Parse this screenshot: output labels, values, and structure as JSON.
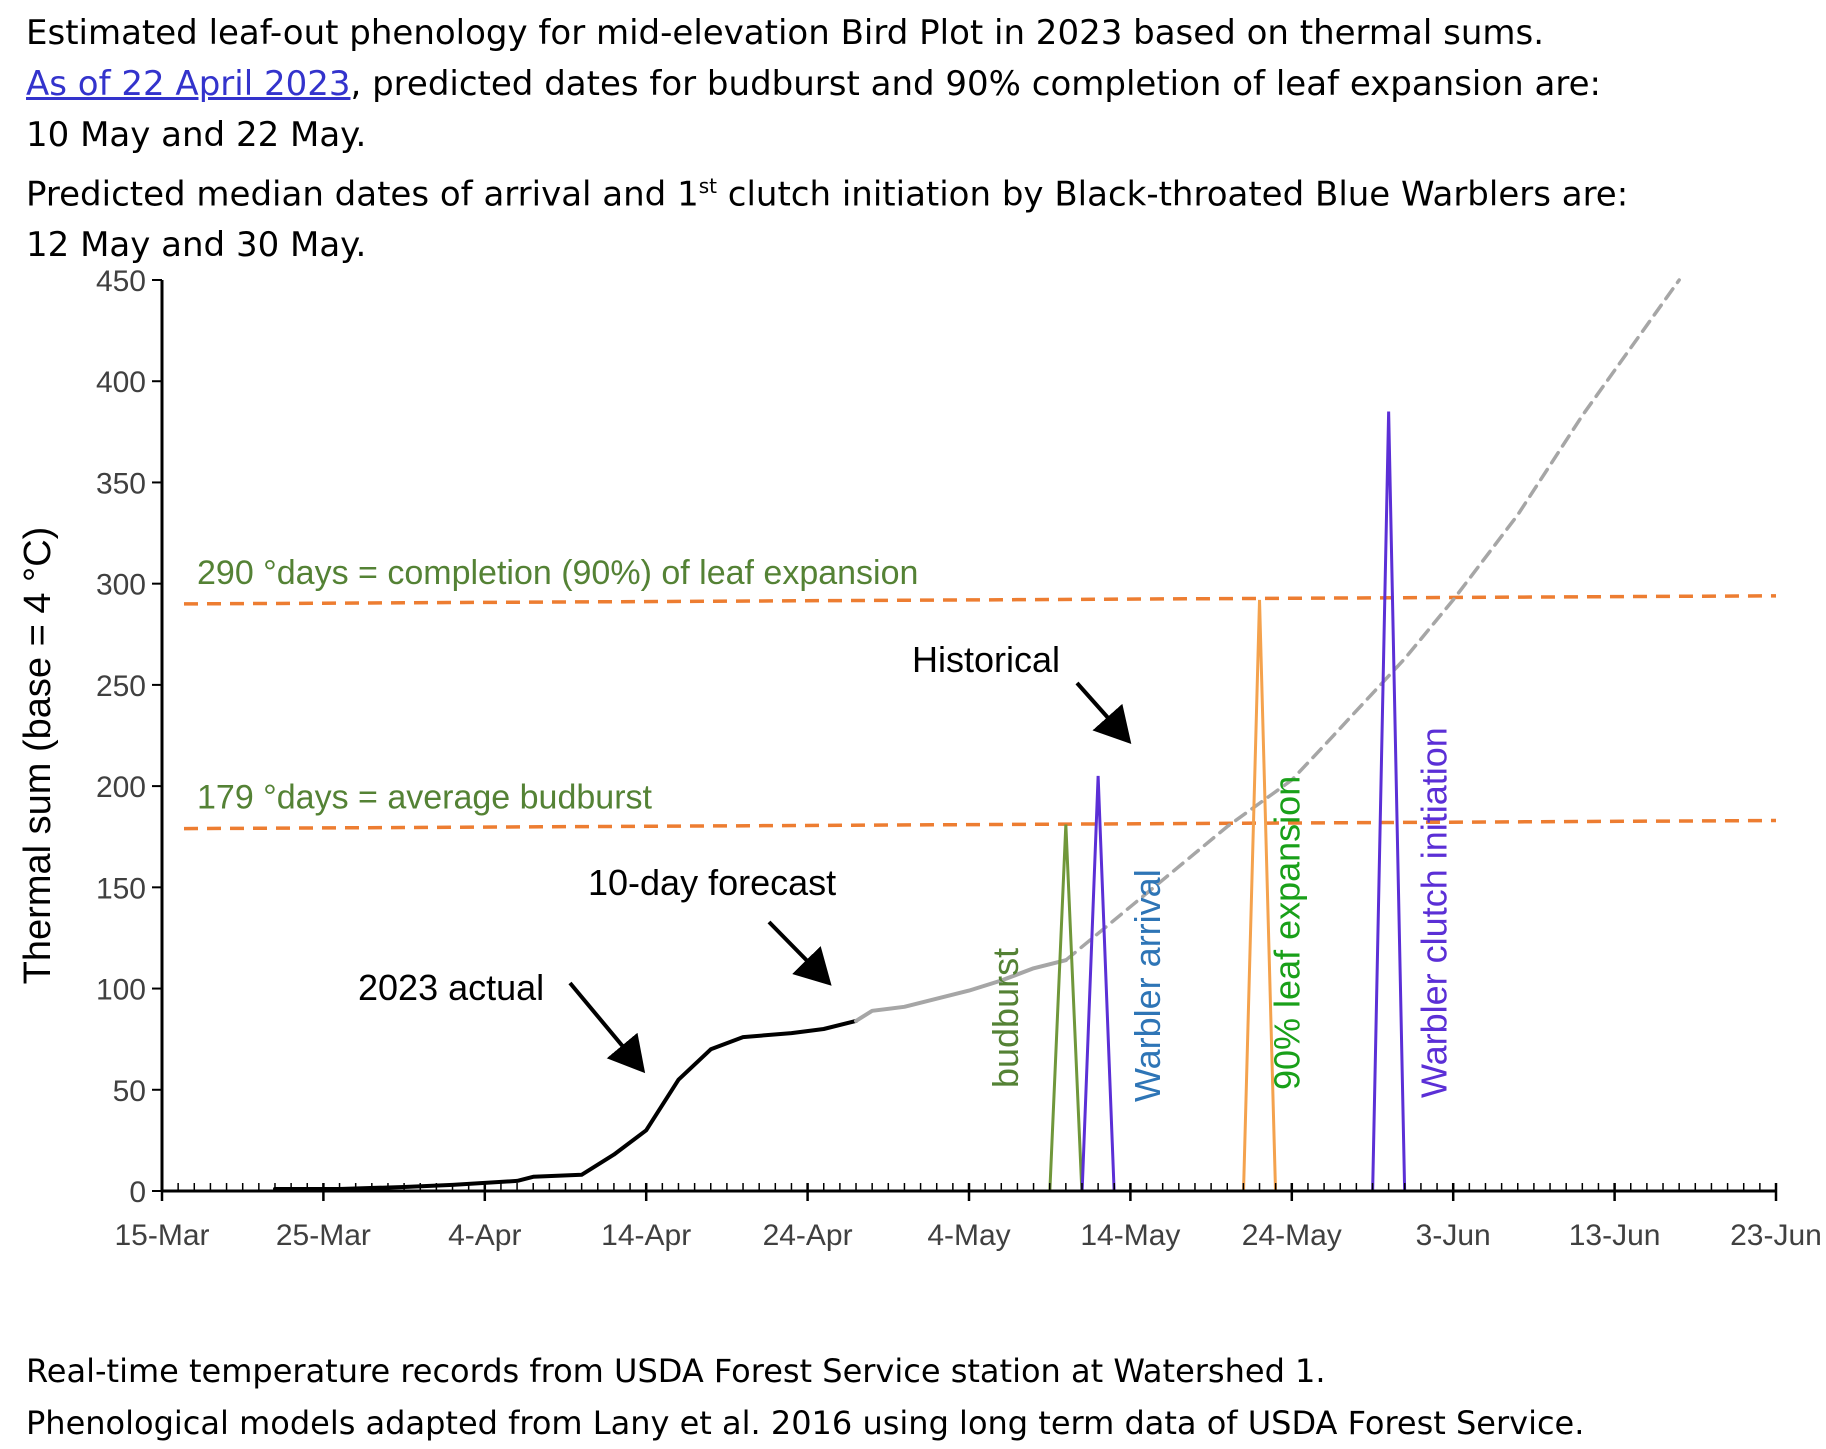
{
  "header": {
    "line1": "Estimated leaf-out phenology for mid-elevation Bird Plot in 2023 based on thermal sums.",
    "line2_link": "As of 22 April 2023",
    "line2_rest": ", predicted dates for budburst and 90% completion of leaf expansion are:",
    "line3": "10 May and 22 May.",
    "line4_pre": "Predicted median dates of arrival and 1",
    "line4_sup": "st",
    "line4_post": " clutch initiation by Black-throated Blue Warblers are:",
    "line5": "12 May and 30 May."
  },
  "footer": {
    "line1": "Real-time temperature records from USDA Forest Service station at Watershed 1.",
    "line2": "Phenological models adapted from Lany et al. 2016 using long term data of USDA Forest Service."
  },
  "colors": {
    "actual": "#000000",
    "forecast": "#a6a6a6",
    "historical": "#a6a6a6",
    "threshold": "#ed7d31",
    "threshold_label": "#548235",
    "budburst": "#70973a",
    "warbler_arrival": "#5b2fd6",
    "leaf_expansion": "#f4a24d",
    "clutch": "#5b2fd6",
    "label_budburst": "#548235",
    "label_arrival": "#2e75b6",
    "label_leaf": "#19a019",
    "label_clutch": "#5b2fd6"
  },
  "chart_data": {
    "type": "line",
    "title": "",
    "xlabel": "",
    "ylabel": "Thermal sum (base = 4 °C)",
    "x_ticks": [
      "15-Mar",
      "25-Mar",
      "4-Apr",
      "14-Apr",
      "24-Apr",
      "4-May",
      "14-May",
      "24-May",
      "3-Jun",
      "13-Jun",
      "23-Jun"
    ],
    "x_range": [
      "15-Mar",
      "23-Jun"
    ],
    "y_ticks": [
      0,
      50,
      100,
      150,
      200,
      250,
      300,
      350,
      400,
      450
    ],
    "ylim": [
      0,
      450
    ],
    "grid": false,
    "series": [
      {
        "name": "2023 actual",
        "style": "solid",
        "points": [
          [
            "22-Mar",
            1
          ],
          [
            "26-Mar",
            1
          ],
          [
            "30-Mar",
            2
          ],
          [
            "2-Apr",
            3
          ],
          [
            "4-Apr",
            4
          ],
          [
            "6-Apr",
            5
          ],
          [
            "7-Apr",
            7
          ],
          [
            "10-Apr",
            8
          ],
          [
            "12-Apr",
            18
          ],
          [
            "14-Apr",
            30
          ],
          [
            "16-Apr",
            55
          ],
          [
            "18-Apr",
            70
          ],
          [
            "20-Apr",
            76
          ],
          [
            "23-Apr",
            78
          ],
          [
            "25-Apr",
            80
          ],
          [
            "27-Apr",
            84
          ]
        ]
      },
      {
        "name": "10-day forecast",
        "style": "solid",
        "points": [
          [
            "27-Apr",
            84
          ],
          [
            "28-Apr",
            89
          ],
          [
            "30-Apr",
            91
          ],
          [
            "2-May",
            95
          ],
          [
            "4-May",
            99
          ],
          [
            "6-May",
            104
          ],
          [
            "8-May",
            110
          ],
          [
            "10-May",
            114
          ]
        ]
      },
      {
        "name": "Historical",
        "style": "dashed",
        "points": [
          [
            "10-May",
            114
          ],
          [
            "15-May",
            147
          ],
          [
            "20-May",
            180
          ],
          [
            "24-May",
            203
          ],
          [
            "26-May",
            220
          ],
          [
            "31-May",
            263
          ],
          [
            "3-Jun",
            292
          ],
          [
            "7-Jun",
            334
          ],
          [
            "11-Jun",
            383
          ],
          [
            "17-Jun",
            450
          ]
        ]
      }
    ],
    "thresholds": [
      {
        "label": "179 °days = average budburst",
        "value": 179,
        "value_end": 183
      },
      {
        "label": "290 °days = completion (90%) of leaf expansion",
        "value": 290,
        "value_end": 294
      }
    ],
    "spikes": [
      {
        "label": "budburst",
        "date": "10-May",
        "value": 181
      },
      {
        "label": "Warbler arrival",
        "date": "12-May",
        "value": 205
      },
      {
        "label": "90% leaf  expansion",
        "date": "22-May",
        "value": 292
      },
      {
        "label": "Warbler clutch initiation",
        "date": "30-May",
        "value": 385
      }
    ],
    "annotations": [
      "2023 actual",
      "10-day forecast",
      "Historical"
    ]
  }
}
